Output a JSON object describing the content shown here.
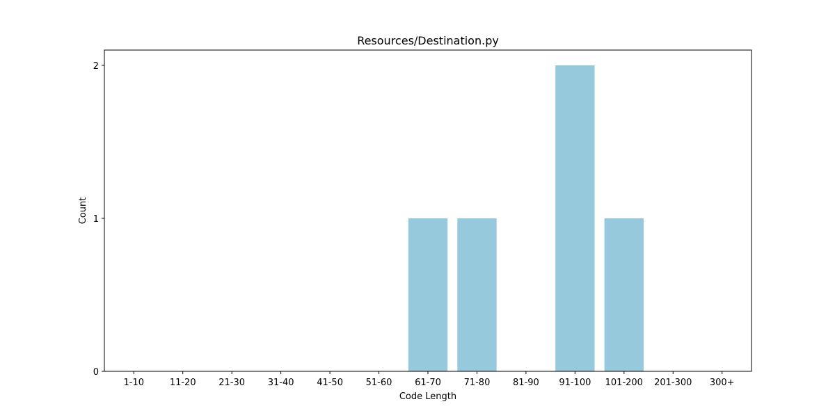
{
  "chart_data": {
    "type": "bar",
    "title": "Resources/Destination.py",
    "xlabel": "Code Length",
    "ylabel": "Count",
    "categories": [
      "1-10",
      "11-20",
      "21-30",
      "31-40",
      "41-50",
      "51-60",
      "61-70",
      "71-80",
      "81-90",
      "91-100",
      "101-200",
      "201-300",
      "300+"
    ],
    "values": [
      0,
      0,
      0,
      0,
      0,
      0,
      1,
      1,
      0,
      2,
      1,
      0,
      0
    ],
    "ylim": [
      0,
      2.1
    ],
    "yticks": [
      0,
      1,
      2
    ],
    "grid": false,
    "legend": "none",
    "colors": {
      "bar": "#96c9dc",
      "axes": "#000000",
      "background": "#ffffff"
    }
  }
}
